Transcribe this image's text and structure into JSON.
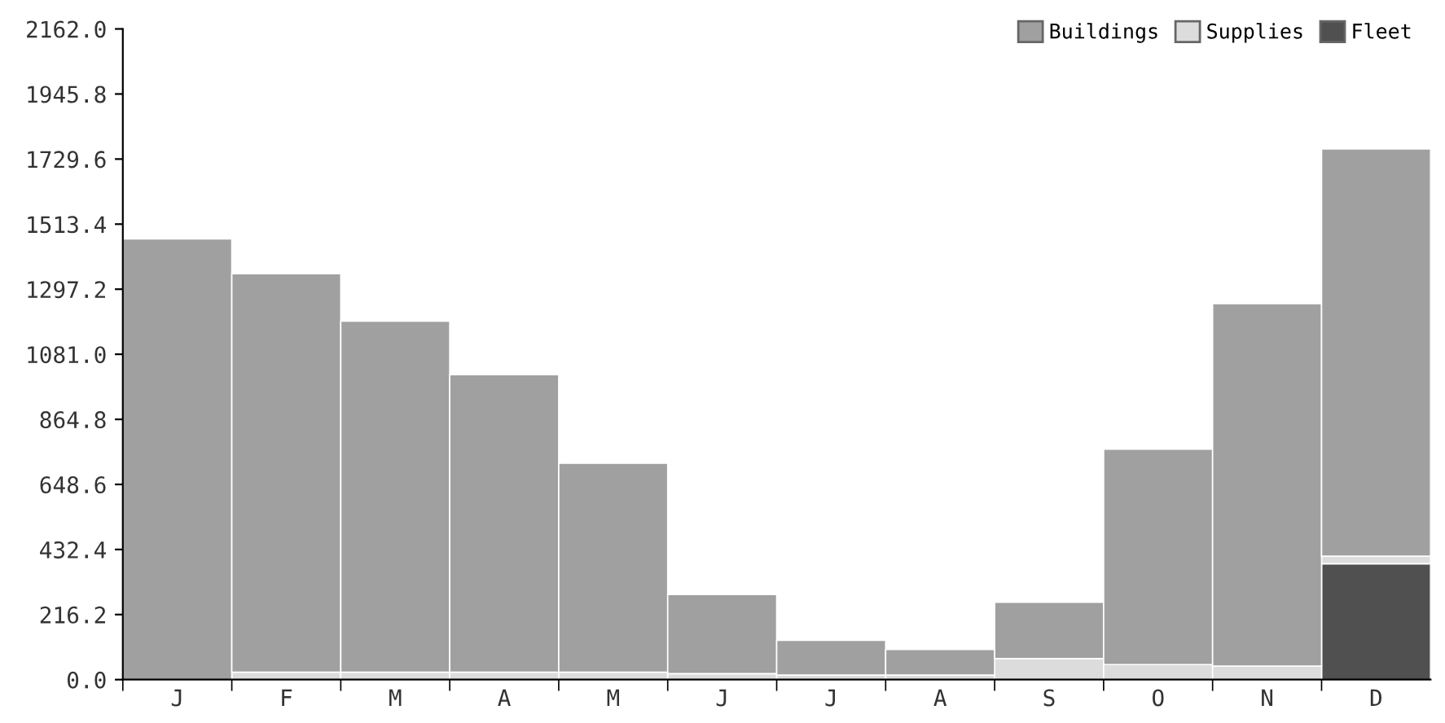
{
  "chart_data": {
    "type": "bar",
    "stacked": true,
    "categories": [
      "J",
      "F",
      "M",
      "A",
      "M",
      "J",
      "J",
      "A",
      "S",
      "O",
      "N",
      "D"
    ],
    "series": [
      {
        "name": "Fleet",
        "color": "#505050",
        "values": [
          0,
          0,
          0,
          0,
          0,
          0,
          0,
          0,
          0,
          0,
          0,
          385
        ]
      },
      {
        "name": "Supplies",
        "color": "#dcdcdc",
        "values": [
          0,
          25,
          25,
          25,
          25,
          20,
          15,
          15,
          70,
          50,
          45,
          25
        ]
      },
      {
        "name": "Buildings",
        "color": "#a0a0a0",
        "values": [
          1464,
          1324,
          1166,
          988,
          694,
          263,
          116,
          85,
          187,
          716,
          1204,
          1353
        ]
      }
    ],
    "ylim": [
      0,
      2162
    ],
    "yticks": [
      {
        "value": 0,
        "label": "0.0"
      },
      {
        "value": 216.2,
        "label": "216.2"
      },
      {
        "value": 432.4,
        "label": "432.4"
      },
      {
        "value": 648.6,
        "label": "648.6"
      },
      {
        "value": 864.8,
        "label": "864.8"
      },
      {
        "value": 1081,
        "label": "1081.0"
      },
      {
        "value": 1297.2,
        "label": "1297.2"
      },
      {
        "value": 1513.4,
        "label": "1513.4"
      },
      {
        "value": 1729.6,
        "label": "1729.6"
      },
      {
        "value": 1945.8,
        "label": "1945.8"
      },
      {
        "value": 2162,
        "label": "2162.0"
      }
    ],
    "grid": false,
    "legend": "top right"
  }
}
